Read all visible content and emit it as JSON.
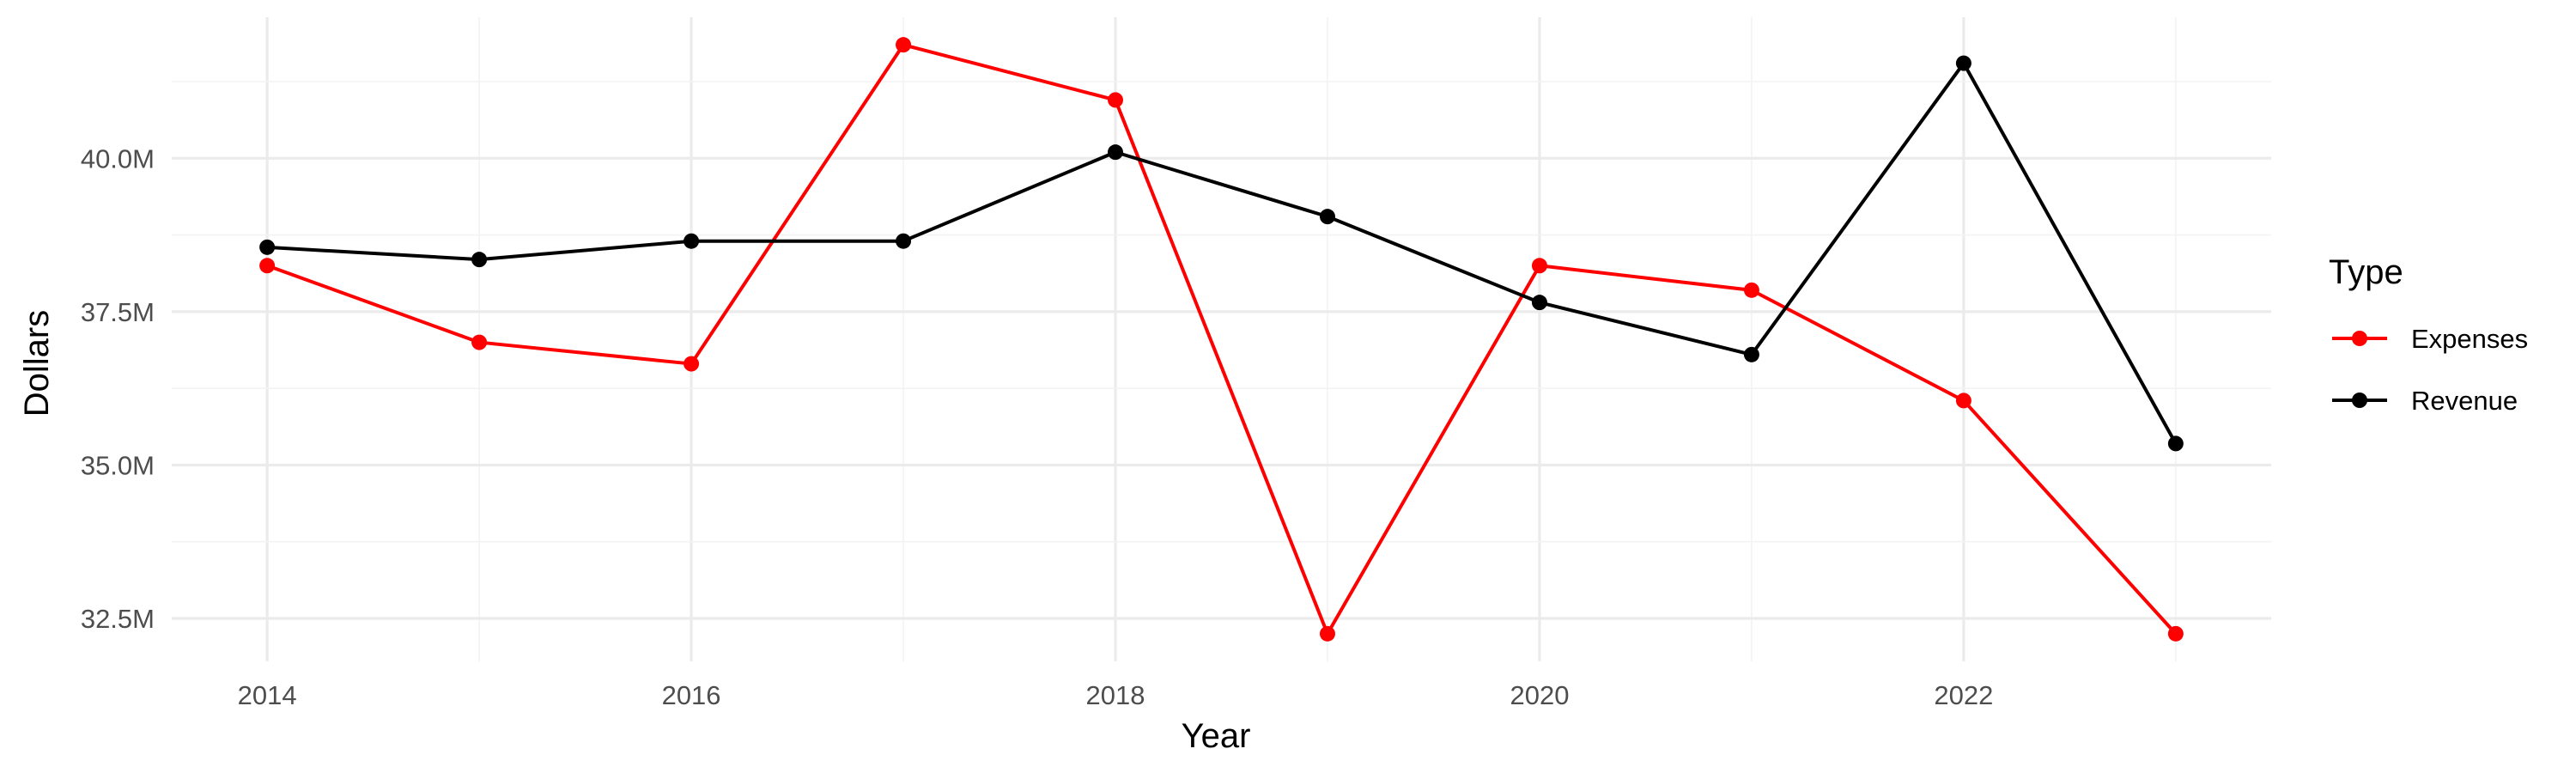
{
  "chart_data": {
    "type": "line",
    "title": "",
    "xlabel": "Year",
    "ylabel": "Dollars",
    "x": [
      2014,
      2015,
      2016,
      2017,
      2018,
      2019,
      2020,
      2021,
      2022,
      2023
    ],
    "xlim": [
      2013.55,
      2023.45
    ],
    "ylim": [
      31.8,
      42.3
    ],
    "x_ticks": [
      2014,
      2016,
      2018,
      2020,
      2022
    ],
    "x_tick_labels": [
      "2014",
      "2016",
      "2018",
      "2020",
      "2022"
    ],
    "y_ticks": [
      32.5,
      35.0,
      37.5,
      40.0
    ],
    "y_tick_labels": [
      "32.5M",
      "35.0M",
      "37.5M",
      "40.0M"
    ],
    "y_unit": "millions of dollars",
    "grid": true,
    "legend": {
      "title": "Type",
      "position": "right",
      "entries": [
        "Expenses",
        "Revenue"
      ]
    },
    "series": [
      {
        "name": "Expenses",
        "color": "#ff0000",
        "values": [
          38.25,
          37.0,
          36.65,
          41.85,
          40.95,
          32.25,
          38.25,
          37.85,
          36.05,
          32.25
        ]
      },
      {
        "name": "Revenue",
        "color": "#000000",
        "values": [
          38.55,
          38.35,
          38.65,
          38.65,
          40.1,
          39.05,
          37.65,
          36.8,
          41.55,
          35.35
        ]
      }
    ]
  }
}
